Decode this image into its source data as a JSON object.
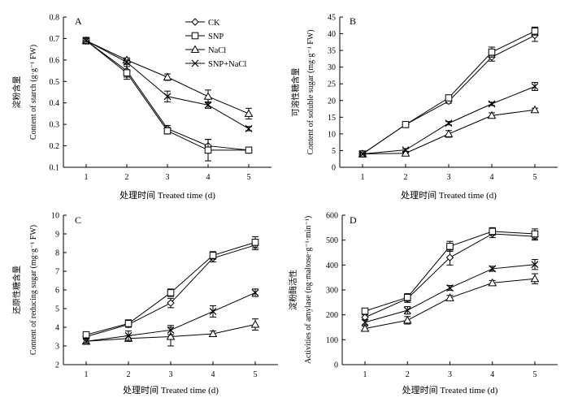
{
  "chart_data": [
    {
      "panel_label": "A",
      "type": "line",
      "x": [
        1,
        2,
        3,
        4,
        5
      ],
      "xlabel": "处理时间 Treated time (d)",
      "ylabel_cn": "淀粉含量",
      "ylabel_en": "Content of starch (g·g⁻¹ FW)",
      "ylim": [
        0.1,
        0.8
      ],
      "yticks": [
        "0.1",
        "0.2",
        "0.3",
        "0.4",
        "0.5",
        "0.6",
        "0.7",
        "0.8"
      ],
      "xticks": [
        "1",
        "2",
        "3",
        "4",
        "5"
      ],
      "grid": false,
      "legend": {
        "placement": "top-right",
        "entries": [
          "CK",
          "SNP",
          "NaCl",
          "SNP+NaCl"
        ]
      },
      "series": [
        {
          "name": "CK",
          "marker": "diamond",
          "values": [
            0.69,
            0.55,
            0.28,
            0.2,
            0.18
          ],
          "errors": [
            0.015,
            0.03,
            0.015,
            0.03,
            0.01
          ]
        },
        {
          "name": "SNP",
          "marker": "square",
          "values": [
            0.69,
            0.54,
            0.27,
            0.18,
            0.18
          ],
          "errors": [
            0.015,
            0.03,
            0.015,
            0.05,
            0.01
          ]
        },
        {
          "name": "NaCl",
          "marker": "triangle",
          "values": [
            0.69,
            0.6,
            0.52,
            0.43,
            0.35
          ],
          "errors": [
            0.015,
            0.01,
            0.015,
            0.03,
            0.025
          ]
        },
        {
          "name": "SNP+NaCl",
          "marker": "x",
          "values": [
            0.69,
            0.59,
            0.43,
            0.39,
            0.28
          ],
          "errors": [
            0.015,
            0.01,
            0.025,
            0.015,
            0.01
          ]
        }
      ]
    },
    {
      "panel_label": "B",
      "type": "line",
      "x": [
        1,
        2,
        3,
        4,
        5
      ],
      "xlabel": "处理时间 Treated time (d)",
      "ylabel_cn": "可溶性糖含量",
      "ylabel_en": "Content of soluble sugar (mg·g⁻¹ FW)",
      "ylim": [
        0,
        45
      ],
      "yticks": [
        "0",
        "5",
        "10",
        "15",
        "20",
        "25",
        "30",
        "35",
        "40",
        "45"
      ],
      "xticks": [
        "1",
        "2",
        "3",
        "4",
        "5"
      ],
      "grid": false,
      "series": [
        {
          "name": "CK",
          "marker": "diamond",
          "values": [
            4.0,
            12.8,
            19.8,
            33.0,
            39.5
          ],
          "errors": [
            0.3,
            0.4,
            0.6,
            1.2,
            1.8
          ]
        },
        {
          "name": "SNP",
          "marker": "square",
          "values": [
            4.0,
            12.8,
            20.8,
            34.5,
            40.8
          ],
          "errors": [
            0.3,
            0.4,
            0.8,
            1.5,
            1.2
          ]
        },
        {
          "name": "NaCl",
          "marker": "triangle",
          "values": [
            4.0,
            4.2,
            10.0,
            15.5,
            17.2
          ],
          "errors": [
            0.3,
            0.4,
            1.0,
            0.8,
            0.5
          ]
        },
        {
          "name": "SNP+NaCl",
          "marker": "x",
          "values": [
            4.0,
            5.2,
            13.2,
            19.0,
            24.2
          ],
          "errors": [
            0.3,
            0.4,
            0.5,
            0.5,
            1.2
          ]
        }
      ]
    },
    {
      "panel_label": "C",
      "type": "line",
      "x": [
        1,
        2,
        3,
        4,
        5
      ],
      "xlabel": "处理时间 Treated time (d)",
      "ylabel_cn": "还原性糖含量",
      "ylabel_en": "Content of reducing sugar (mg·g⁻¹ FW)",
      "ylim": [
        2,
        10
      ],
      "yticks": [
        "2",
        "3",
        "4",
        "5",
        "6",
        "7",
        "8",
        "9",
        "10"
      ],
      "xticks": [
        "1",
        "2",
        "3",
        "4",
        "5"
      ],
      "grid": false,
      "series": [
        {
          "name": "CK",
          "marker": "diamond",
          "values": [
            3.5,
            4.15,
            5.3,
            7.7,
            8.4
          ],
          "errors": [
            0.15,
            0.15,
            0.25,
            0.2,
            0.25
          ]
        },
        {
          "name": "SNP",
          "marker": "square",
          "values": [
            3.6,
            4.2,
            5.85,
            7.85,
            8.55
          ],
          "errors": [
            0.15,
            0.2,
            0.2,
            0.2,
            0.3
          ]
        },
        {
          "name": "NaCl",
          "marker": "triangle",
          "values": [
            3.25,
            3.4,
            3.5,
            3.65,
            4.15
          ],
          "errors": [
            0.15,
            0.15,
            0.5,
            0.15,
            0.3
          ]
        },
        {
          "name": "SNP+NaCl",
          "marker": "x",
          "values": [
            3.25,
            3.55,
            3.85,
            4.85,
            5.85
          ],
          "errors": [
            0.15,
            0.25,
            0.25,
            0.3,
            0.2
          ]
        }
      ]
    },
    {
      "panel_label": "D",
      "type": "line",
      "x": [
        1,
        2,
        3,
        4,
        5
      ],
      "xlabel": "处理时间 Treated time (d)",
      "ylabel_cn": "淀粉酶活性",
      "ylabel_en": "Activities of amylase (ng·maltose·g⁻¹·min⁻¹)",
      "ylim": [
        0,
        600
      ],
      "yticks": [
        "0",
        "100",
        "200",
        "300",
        "400",
        "500",
        "600"
      ],
      "xticks": [
        "1",
        "2",
        "3",
        "4",
        "5"
      ],
      "grid": false,
      "series": [
        {
          "name": "CK",
          "marker": "diamond",
          "values": [
            190,
            265,
            430,
            525,
            515
          ],
          "errors": [
            10,
            15,
            30,
            15,
            15
          ]
        },
        {
          "name": "SNP",
          "marker": "square",
          "values": [
            215,
            270,
            475,
            535,
            525
          ],
          "errors": [
            10,
            15,
            20,
            15,
            20
          ]
        },
        {
          "name": "NaCl",
          "marker": "triangle",
          "values": [
            145,
            178,
            268,
            328,
            345
          ],
          "errors": [
            10,
            15,
            10,
            10,
            20
          ]
        },
        {
          "name": "SNP+NaCl",
          "marker": "x",
          "values": [
            170,
            218,
            308,
            385,
            402
          ],
          "errors": [
            10,
            15,
            10,
            10,
            20
          ]
        }
      ]
    }
  ]
}
